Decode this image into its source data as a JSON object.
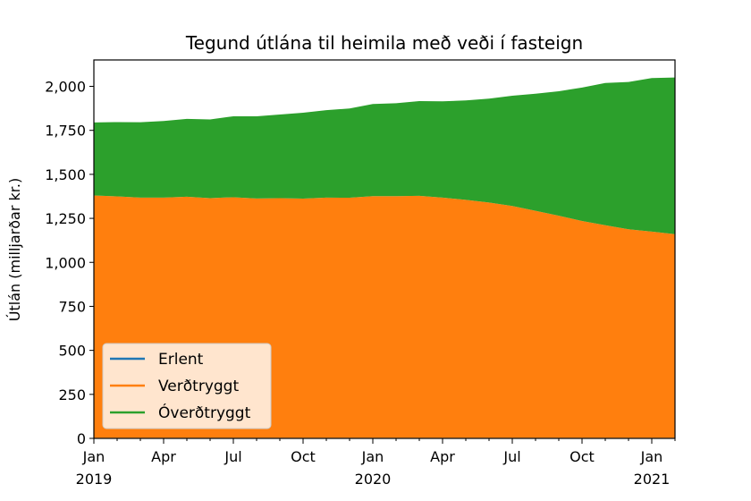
{
  "chart_data": {
    "type": "area",
    "stacked": true,
    "title": "Tegund útlána til heimila með veði í fasteign",
    "xlabel": "",
    "ylabel": "Útlán (milljarðar kr.)",
    "ylim": [
      0,
      2150
    ],
    "yticks": [
      0,
      250,
      500,
      750,
      1000,
      1250,
      1500,
      1750,
      2000
    ],
    "ytick_labels": [
      "0",
      "250",
      "500",
      "750",
      "1,000",
      "1,250",
      "1,500",
      "1,750",
      "2,000"
    ],
    "xticks": [
      {
        "index": 0,
        "line1": "Jan",
        "line2": "2019"
      },
      {
        "index": 3,
        "line1": "Apr",
        "line2": ""
      },
      {
        "index": 6,
        "line1": "Jul",
        "line2": ""
      },
      {
        "index": 9,
        "line1": "Oct",
        "line2": ""
      },
      {
        "index": 12,
        "line1": "Jan",
        "line2": "2020"
      },
      {
        "index": 15,
        "line1": "Apr",
        "line2": ""
      },
      {
        "index": 18,
        "line1": "Jul",
        "line2": ""
      },
      {
        "index": 21,
        "line1": "Oct",
        "line2": ""
      },
      {
        "index": 24,
        "line1": "Jan",
        "line2": "2021"
      }
    ],
    "x": [
      "2019-01",
      "2019-02",
      "2019-03",
      "2019-04",
      "2019-05",
      "2019-06",
      "2019-07",
      "2019-08",
      "2019-09",
      "2019-10",
      "2019-11",
      "2019-12",
      "2020-01",
      "2020-02",
      "2020-03",
      "2020-04",
      "2020-05",
      "2020-06",
      "2020-07",
      "2020-08",
      "2020-09",
      "2020-10",
      "2020-11",
      "2020-12",
      "2021-01",
      "2021-02"
    ],
    "grid": false,
    "legend_position": "lower-left",
    "series": [
      {
        "name": "Erlent",
        "color": "#1f77b4",
        "values": [
          3,
          3,
          3,
          3,
          3,
          3,
          3,
          3,
          3,
          3,
          3,
          3,
          3,
          3,
          3,
          3,
          3,
          3,
          3,
          3,
          3,
          3,
          3,
          3,
          3,
          3
        ]
      },
      {
        "name": "Verðtryggt",
        "color": "#ff7f0e",
        "values": [
          1377,
          1372,
          1365,
          1365,
          1370,
          1362,
          1367,
          1360,
          1362,
          1359,
          1365,
          1364,
          1373,
          1373,
          1375,
          1365,
          1352,
          1337,
          1317,
          1290,
          1262,
          1232,
          1208,
          1185,
          1172,
          1157
        ]
      },
      {
        "name": "Óverðtryggt",
        "color": "#2ca02c",
        "values": [
          415,
          422,
          428,
          435,
          442,
          447,
          460,
          467,
          475,
          488,
          497,
          507,
          524,
          528,
          538,
          547,
          565,
          590,
          627,
          665,
          707,
          758,
          808,
          837,
          872,
          890
        ]
      }
    ]
  }
}
